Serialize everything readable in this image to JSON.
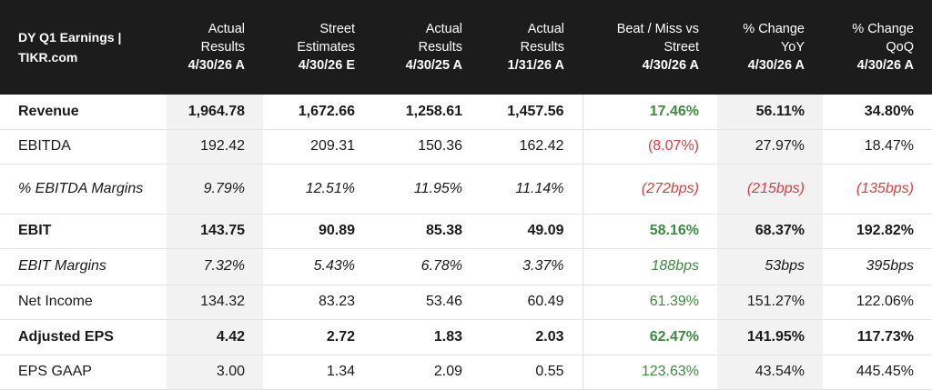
{
  "table": {
    "title": "DY Q1 Earnings | TIKR.com",
    "columns": [
      {
        "label": "Actual Results",
        "date": "4/30/26 A"
      },
      {
        "label": "Street Estimates",
        "date": "4/30/26 E"
      },
      {
        "label": "Actual Results",
        "date": "4/30/25 A"
      },
      {
        "label": "Actual Results",
        "date": "1/31/26 A"
      },
      {
        "label": "Beat / Miss vs Street",
        "date": "4/30/26 A"
      },
      {
        "label": "% Change YoY",
        "date": "4/30/26 A"
      },
      {
        "label": "% Change QoQ",
        "date": "4/30/26 A"
      }
    ],
    "rows": [
      {
        "label": "Revenue",
        "values": [
          "1,964.78",
          "1,672.66",
          "1,258.61",
          "1,457.56",
          "17.46%",
          "56.11%",
          "34.80%"
        ]
      },
      {
        "label": "EBITDA",
        "values": [
          "192.42",
          "209.31",
          "150.36",
          "162.42",
          "(8.07%)",
          "27.97%",
          "18.47%"
        ]
      },
      {
        "label": "% EBITDA Margins",
        "values": [
          "9.79%",
          "12.51%",
          "11.95%",
          "11.14%",
          "(272bps)",
          "(215bps)",
          "(135bps)"
        ]
      },
      {
        "label": "EBIT",
        "values": [
          "143.75",
          "90.89",
          "85.38",
          "49.09",
          "58.16%",
          "68.37%",
          "192.82%"
        ]
      },
      {
        "label": "EBIT Margins",
        "values": [
          "7.32%",
          "5.43%",
          "6.78%",
          "3.37%",
          "188bps",
          "53bps",
          "395bps"
        ]
      },
      {
        "label": "Net Income",
        "values": [
          "134.32",
          "83.23",
          "53.46",
          "60.49",
          "61.39%",
          "151.27%",
          "122.06%"
        ]
      },
      {
        "label": "Adjusted EPS",
        "values": [
          "4.42",
          "2.72",
          "1.83",
          "2.03",
          "62.47%",
          "141.95%",
          "117.73%"
        ]
      },
      {
        "label": "EPS GAAP",
        "values": [
          "3.00",
          "1.34",
          "2.09",
          "0.55",
          "123.63%",
          "43.54%",
          "445.45%"
        ]
      }
    ],
    "colors": {
      "header_bg": "#1c1c1c",
      "positive": "#3d8a41",
      "negative": "#d84040",
      "highlight_bg": "#f2f2f2"
    }
  }
}
